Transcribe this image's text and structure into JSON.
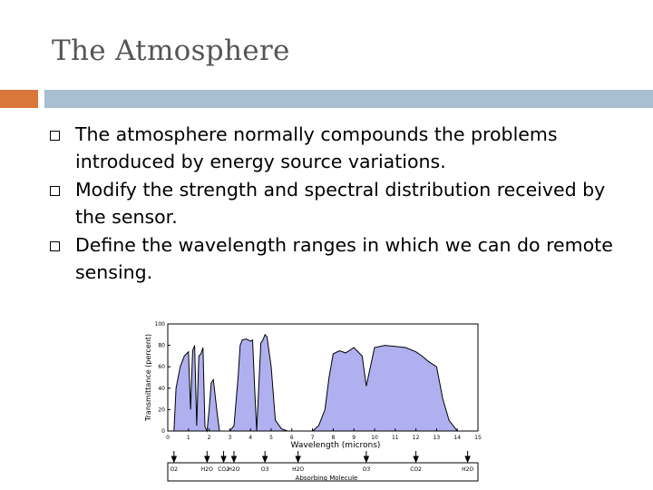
{
  "slide": {
    "title": "The Atmosphere",
    "bullets": [
      "The atmosphere normally compounds the problems introduced by energy source variations.",
      "Modify the strength and spectral distribution received by the sensor.",
      "Define the wavelength ranges in which we can do remote sensing."
    ]
  },
  "colors": {
    "accent_orange": "#d9773a",
    "accent_blue": "#a8bed1",
    "fill": "#b0b0f0"
  },
  "chart_data": {
    "type": "area",
    "xlabel": "Wavelength (microns)",
    "ylabel": "Transmittance (percent)",
    "xlim": [
      0,
      15
    ],
    "ylim": [
      0,
      100
    ],
    "xticks": [
      "0",
      "1",
      "2",
      "3",
      "4",
      "5",
      "6",
      "7",
      "8",
      "9",
      "10",
      "11",
      "12",
      "13",
      "14",
      "15"
    ],
    "yticks": [
      "0",
      "20",
      "40",
      "60",
      "80",
      "100"
    ],
    "series": [
      {
        "x": [
          0.3,
          0.4,
          0.6,
          0.8,
          0.9,
          1.0,
          1.1,
          1.2,
          1.3,
          1.4,
          1.5,
          1.6,
          1.7,
          1.8,
          1.9,
          2.0,
          2.1,
          2.2,
          2.4,
          2.5,
          2.6,
          2.8,
          3.0,
          3.2,
          3.4,
          3.5,
          3.6,
          3.8,
          4.0,
          4.1,
          4.2,
          4.3,
          4.5,
          4.6,
          4.7,
          4.8,
          5.0,
          5.2,
          5.5,
          5.8,
          6.0,
          7.0,
          7.3,
          7.6,
          7.8,
          8.0,
          8.3,
          8.6,
          9.0,
          9.4,
          9.6,
          9.8,
          10.0,
          10.5,
          11.0,
          11.5,
          12.0,
          12.3,
          12.6,
          13.0,
          13.3,
          13.6,
          14.0
        ],
        "y": [
          0,
          40,
          60,
          70,
          72,
          74,
          20,
          75,
          80,
          5,
          70,
          72,
          78,
          4,
          0,
          20,
          45,
          48,
          15,
          0,
          0,
          0,
          0,
          5,
          50,
          80,
          85,
          86,
          84,
          85,
          40,
          0,
          82,
          85,
          90,
          88,
          60,
          10,
          2,
          0,
          0,
          0,
          5,
          20,
          50,
          72,
          75,
          73,
          78,
          70,
          42,
          60,
          78,
          80,
          79,
          78,
          74,
          70,
          65,
          60,
          30,
          10,
          0
        ]
      }
    ],
    "molecules_axis_label": "Absorbing Molecule",
    "molecules": [
      "O2",
      "H2O",
      "CO2",
      "H2O",
      "O3",
      "H2O",
      "O3",
      "CO2",
      "H2O"
    ]
  }
}
